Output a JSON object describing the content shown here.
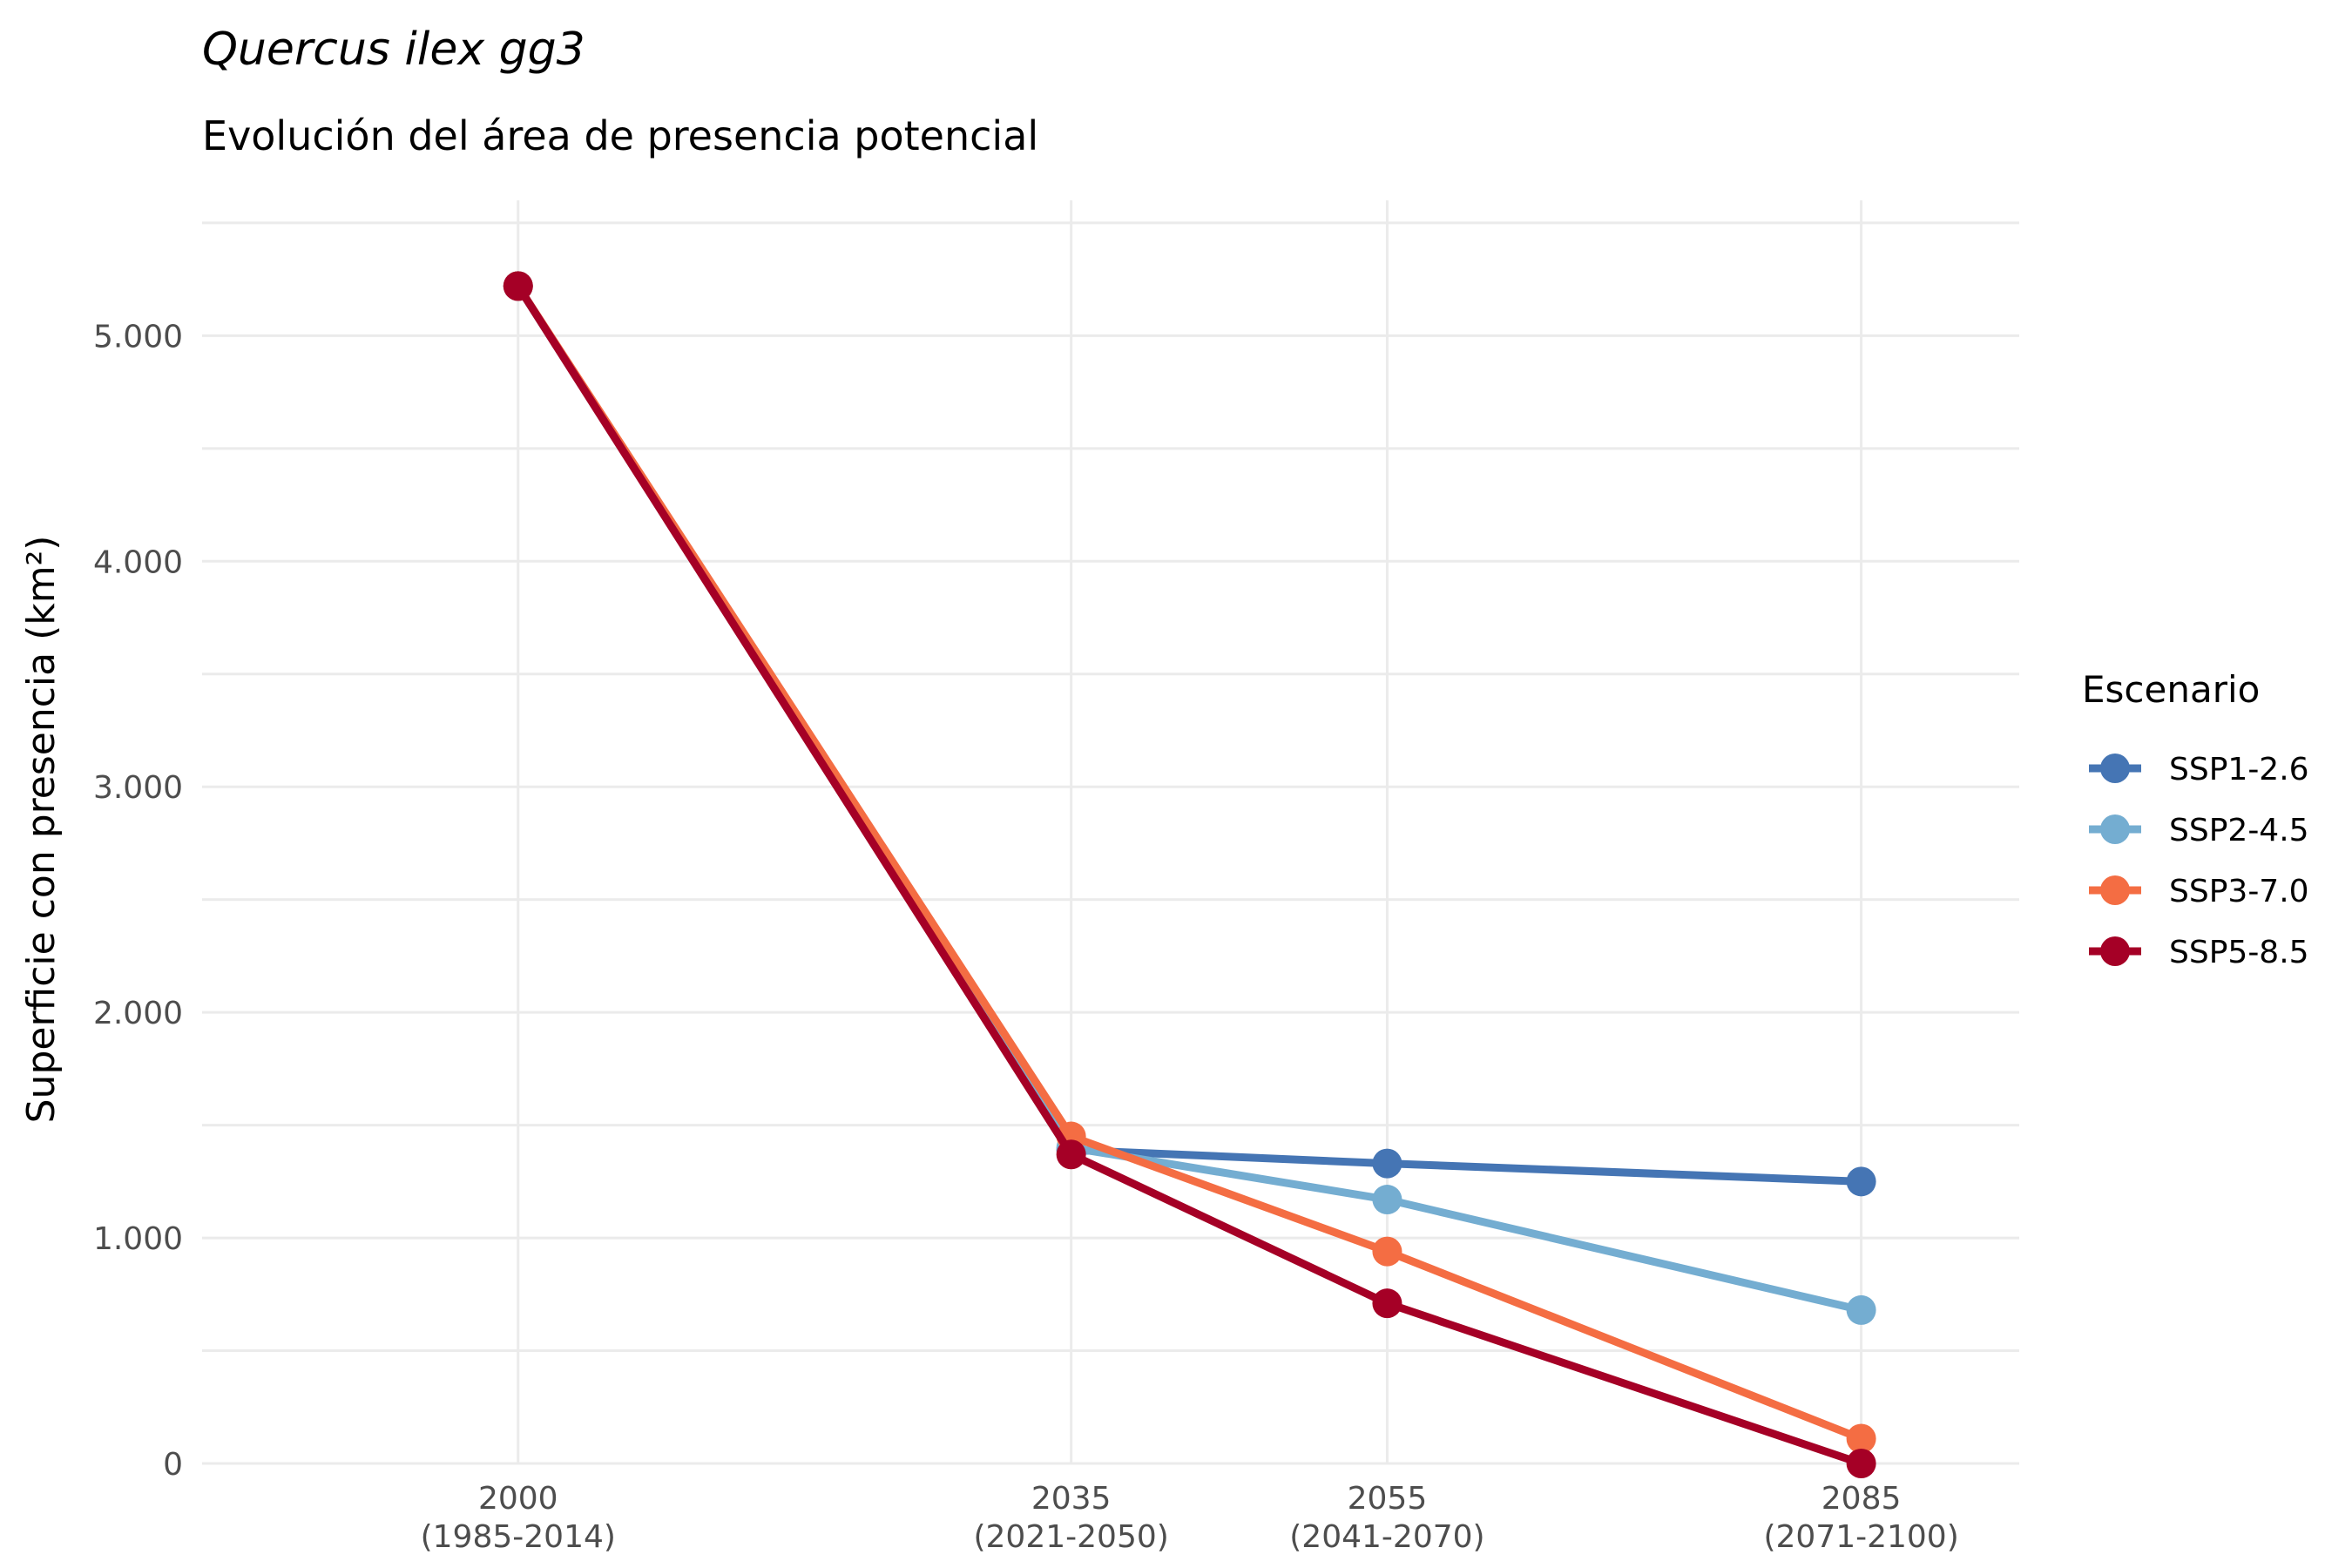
{
  "chart_data": {
    "type": "line",
    "title": "Quercus ilex gg3",
    "subtitle": "Evolución del área de presencia potencial",
    "xlabel": "",
    "ylabel": "Superficie con presencia (km²)",
    "x": [
      2000,
      2035,
      2055,
      2085
    ],
    "x_tick_labels": [
      [
        "2000",
        "(1985-2014)"
      ],
      [
        "2035",
        "(2021-2050)"
      ],
      [
        "2055",
        "(2041-2070)"
      ],
      [
        "2085",
        "(2071-2100)"
      ]
    ],
    "xlim": [
      1980,
      2095
    ],
    "ylim": [
      0,
      5600
    ],
    "y_ticks": [
      0,
      1000,
      2000,
      3000,
      4000,
      5000
    ],
    "y_tick_labels": [
      "0",
      "1.000",
      "2.000",
      "3.000",
      "4.000",
      "5.000"
    ],
    "grid": true,
    "legend": {
      "title": "Escenario",
      "placement": "right"
    },
    "series": [
      {
        "name": "SSP1-2.6",
        "color": "#4575b4",
        "values": [
          5220,
          1390,
          1330,
          1250
        ]
      },
      {
        "name": "SSP2-4.5",
        "color": "#74add1",
        "values": [
          5220,
          1400,
          1170,
          680
        ]
      },
      {
        "name": "SSP3-7.0",
        "color": "#f46d43",
        "values": [
          5220,
          1450,
          940,
          110
        ]
      },
      {
        "name": "SSP5-8.5",
        "color": "#a50026",
        "values": [
          5220,
          1370,
          710,
          0
        ]
      }
    ]
  }
}
